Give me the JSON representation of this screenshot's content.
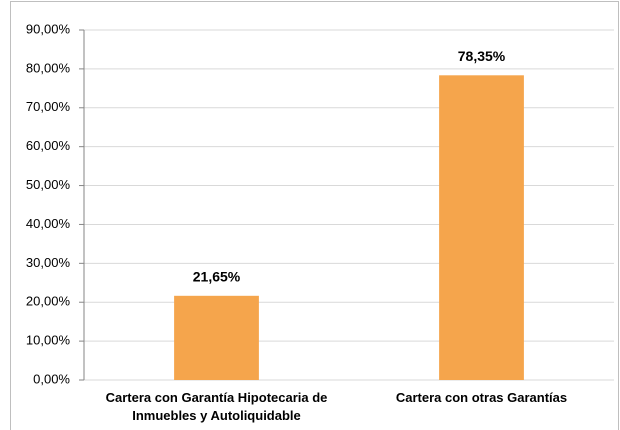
{
  "chart_data": {
    "type": "bar",
    "categories": [
      "Cartera con Garantía Hipotecaria de Inmuebles y Autoliquidable",
      "Cartera con otras Garantías"
    ],
    "values": [
      21.65,
      78.35
    ],
    "value_labels": [
      "21,65%",
      "78,35%"
    ],
    "color": "#f5a54c",
    "ylim": [
      0,
      90
    ],
    "yticks": [
      {
        "value": 0,
        "label": "0,00%"
      },
      {
        "value": 10,
        "label": "10,00%"
      },
      {
        "value": 20,
        "label": "20,00%"
      },
      {
        "value": 30,
        "label": "30,00%"
      },
      {
        "value": 40,
        "label": "40,00%"
      },
      {
        "value": 50,
        "label": "50,00%"
      },
      {
        "value": 60,
        "label": "60,00%"
      },
      {
        "value": 70,
        "label": "70,00%"
      },
      {
        "value": 80,
        "label": "80,00%"
      },
      {
        "value": 90,
        "label": "90,00%"
      }
    ],
    "grid": true
  }
}
